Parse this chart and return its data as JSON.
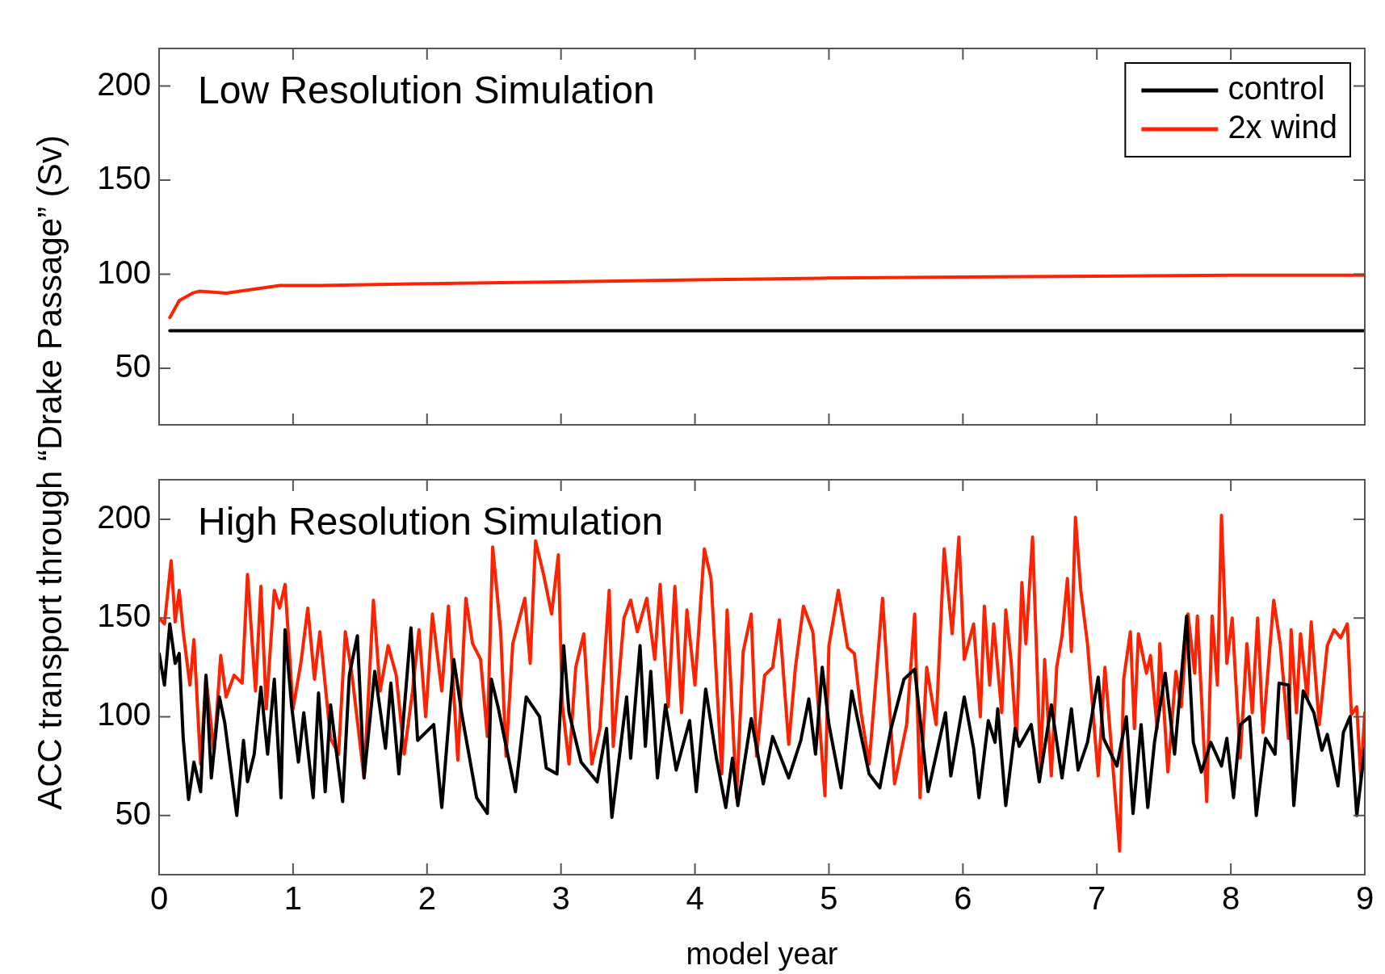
{
  "chart_data": [
    {
      "type": "line",
      "title": "Low Resolution Simulation",
      "ylabel": "ACC transport through “Drake Passage” (Sv)",
      "xlim": [
        0,
        9
      ],
      "xticks": [
        0,
        1,
        2,
        3,
        4,
        5,
        6,
        7,
        8,
        9
      ],
      "ylim": [
        20,
        220
      ],
      "yticks": [
        50,
        100,
        150,
        200
      ],
      "tick_labels": "y",
      "grid": false,
      "legend": "top right",
      "series": [
        {
          "name": "control",
          "color": "#000000",
          "x": [
            0.08,
            9
          ],
          "values": [
            70,
            70
          ]
        },
        {
          "name": "2x wind",
          "color": "#ff2200",
          "x": [
            0.08,
            0.15,
            0.25,
            0.3,
            0.5,
            0.7,
            0.9,
            1.2,
            2,
            3,
            4,
            5,
            6,
            7,
            8,
            9
          ],
          "values": [
            77,
            86,
            90,
            91,
            90,
            92,
            94,
            94,
            95,
            96,
            97,
            98,
            98.5,
            99,
            99.5,
            99.5
          ]
        }
      ]
    },
    {
      "type": "line",
      "title": "High Resolution Simulation",
      "xlabel": "model year",
      "xlim": [
        0,
        9
      ],
      "xticks": [
        0,
        1,
        2,
        3,
        4,
        5,
        6,
        7,
        8,
        9
      ],
      "ylim": [
        20,
        220
      ],
      "yticks": [
        50,
        100,
        150,
        200
      ],
      "grid": false,
      "series": [
        {
          "color": "#000000",
          "x": [
            0,
            0.04,
            0.08,
            0.12,
            0.15,
            0.18,
            0.22,
            0.26,
            0.31,
            0.35,
            0.39,
            0.45,
            0.49,
            0.58,
            0.63,
            0.66,
            0.71,
            0.76,
            0.81,
            0.86,
            0.91,
            0.94,
            0.99,
            1.04,
            1.08,
            1.15,
            1.19,
            1.24,
            1.28,
            1.37,
            1.42,
            1.48,
            1.53,
            1.61,
            1.69,
            1.73,
            1.79,
            1.88,
            1.93,
            2.05,
            2.11,
            2.2,
            2.26,
            2.37,
            2.45,
            2.48,
            2.53,
            2.66,
            2.74,
            2.84,
            2.89,
            2.97,
            3.02,
            3.06,
            3.15,
            3.27,
            3.34,
            3.38,
            3.49,
            3.52,
            3.59,
            3.63,
            3.67,
            3.72,
            3.78,
            3.86,
            3.96,
            4.01,
            4.08,
            4.16,
            4.23,
            4.28,
            4.32,
            4.42,
            4.51,
            4.58,
            4.7,
            4.79,
            4.85,
            4.9,
            4.95,
            5,
            5.09,
            5.17,
            5.3,
            5.38,
            5.46,
            5.56,
            5.64,
            5.74,
            5.87,
            5.91,
            6.01,
            6.08,
            6.12,
            6.19,
            6.24,
            6.26,
            6.32,
            6.39,
            6.42,
            6.51,
            6.57,
            6.66,
            6.74,
            6.81,
            6.86,
            6.93,
            7.01,
            7.05,
            7.15,
            7.22,
            7.27,
            7.33,
            7.38,
            7.43,
            7.51,
            7.58,
            7.67,
            7.72,
            7.78,
            7.85,
            7.93,
            7.97,
            8.02,
            8.07,
            8.14,
            8.19,
            8.26,
            8.33,
            8.36,
            8.43,
            8.47,
            8.54,
            8.62,
            8.68,
            8.72,
            8.8,
            8.84,
            8.89,
            8.94,
            9
          ],
          "values": [
            132,
            116,
            147,
            127,
            132,
            89,
            58,
            77,
            62,
            121,
            69,
            110,
            97,
            50,
            88,
            67,
            81,
            115,
            81,
            119,
            59,
            144,
            105,
            77,
            102,
            59,
            112,
            62,
            106,
            57,
            121,
            141,
            69,
            123,
            84,
            117,
            71,
            145,
            88,
            96,
            54,
            129,
            101,
            59,
            51,
            119,
            105,
            62,
            110,
            100,
            74,
            71,
            136,
            102,
            77,
            67,
            94,
            49,
            110,
            79,
            136,
            85,
            123,
            69,
            106,
            73,
            98,
            62,
            114,
            79,
            54,
            79,
            55,
            99,
            66,
            90,
            69,
            88,
            109,
            81,
            125,
            96,
            64,
            113,
            71,
            64,
            93,
            119,
            124,
            62,
            102,
            70,
            110,
            84,
            59,
            98,
            87,
            104,
            55,
            94,
            85,
            96,
            67,
            106,
            69,
            104,
            73,
            87,
            120,
            89,
            75,
            100,
            51,
            96,
            54,
            87,
            122,
            81,
            151,
            87,
            72,
            87,
            75,
            89,
            59,
            96,
            100,
            50,
            89,
            81,
            117,
            116,
            55,
            113,
            102,
            83,
            91,
            65,
            92,
            100,
            50,
            84
          ]
        },
        {
          "color": "#ff2200",
          "x": [
            0,
            0.04,
            0.09,
            0.12,
            0.15,
            0.18,
            0.23,
            0.26,
            0.31,
            0.35,
            0.41,
            0.46,
            0.5,
            0.56,
            0.62,
            0.66,
            0.72,
            0.76,
            0.8,
            0.86,
            0.9,
            0.94,
            1,
            1.06,
            1.11,
            1.16,
            1.2,
            1.28,
            1.34,
            1.39,
            1.44,
            1.53,
            1.6,
            1.65,
            1.71,
            1.77,
            1.83,
            1.89,
            1.94,
            1.99,
            2.04,
            2.11,
            2.16,
            2.23,
            2.29,
            2.34,
            2.4,
            2.45,
            2.49,
            2.55,
            2.59,
            2.64,
            2.73,
            2.77,
            2.81,
            2.87,
            2.93,
            2.98,
            3.01,
            3.06,
            3.11,
            3.17,
            3.23,
            3.29,
            3.36,
            3.39,
            3.47,
            3.52,
            3.57,
            3.64,
            3.7,
            3.74,
            3.8,
            3.85,
            3.9,
            3.94,
            4,
            4.07,
            4.12,
            4.2,
            4.24,
            4.31,
            4.36,
            4.42,
            4.46,
            4.52,
            4.58,
            4.63,
            4.7,
            4.75,
            4.81,
            4.88,
            4.97,
            5,
            5.07,
            5.14,
            5.19,
            5.24,
            5.3,
            5.4,
            5.49,
            5.58,
            5.64,
            5.68,
            5.73,
            5.8,
            5.86,
            5.92,
            5.97,
            6.01,
            6.08,
            6.13,
            6.16,
            6.2,
            6.23,
            6.29,
            6.32,
            6.36,
            6.4,
            6.44,
            6.47,
            6.52,
            6.58,
            6.61,
            6.66,
            6.7,
            6.74,
            6.78,
            6.81,
            6.84,
            6.88,
            6.93,
            7.01,
            7.06,
            7.11,
            7.17,
            7.2,
            7.25,
            7.28,
            7.31,
            7.37,
            7.4,
            7.45,
            7.47,
            7.53,
            7.59,
            7.63,
            7.68,
            7.73,
            7.75,
            7.82,
            7.86,
            7.9,
            7.93,
            7.97,
            8.01,
            8.07,
            8.12,
            8.16,
            8.2,
            8.24,
            8.32,
            8.37,
            8.43,
            8.45,
            8.49,
            8.52,
            8.57,
            8.6,
            8.66,
            8.72,
            8.77,
            8.82,
            8.87,
            8.9,
            8.94,
            8.97,
            9
          ],
          "values": [
            150,
            147,
            179,
            148,
            164,
            143,
            116,
            139,
            76,
            120,
            82,
            131,
            110,
            121,
            117,
            172,
            113,
            166,
            104,
            164,
            155,
            167,
            104,
            128,
            155,
            119,
            143,
            89,
            81,
            143,
            121,
            69,
            159,
            113,
            136,
            121,
            81,
            112,
            144,
            100,
            152,
            113,
            156,
            78,
            160,
            137,
            129,
            90,
            186,
            143,
            80,
            137,
            160,
            127,
            189,
            172,
            152,
            182,
            106,
            76,
            125,
            142,
            76,
            94,
            164,
            85,
            150,
            159,
            143,
            160,
            129,
            167,
            105,
            166,
            102,
            154,
            116,
            185,
            170,
            71,
            154,
            59,
            133,
            152,
            80,
            121,
            125,
            149,
            86,
            125,
            156,
            143,
            60,
            136,
            164,
            135,
            132,
            102,
            76,
            160,
            66,
            96,
            152,
            59,
            125,
            96,
            185,
            142,
            191,
            129,
            147,
            100,
            156,
            116,
            147,
            102,
            154,
            128,
            88,
            168,
            137,
            191,
            74,
            129,
            70,
            125,
            141,
            170,
            133,
            201,
            164,
            137,
            70,
            125,
            83,
            32,
            119,
            143,
            94,
            142,
            122,
            131,
            94,
            137,
            72,
            123,
            105,
            152,
            122,
            151,
            57,
            151,
            116,
            202,
            127,
            150,
            79,
            137,
            102,
            150,
            92,
            159,
            136,
            89,
            144,
            102,
            142,
            109,
            148,
            96,
            136,
            144,
            140,
            147,
            101,
            105,
            69,
            102
          ]
        }
      ]
    }
  ]
}
